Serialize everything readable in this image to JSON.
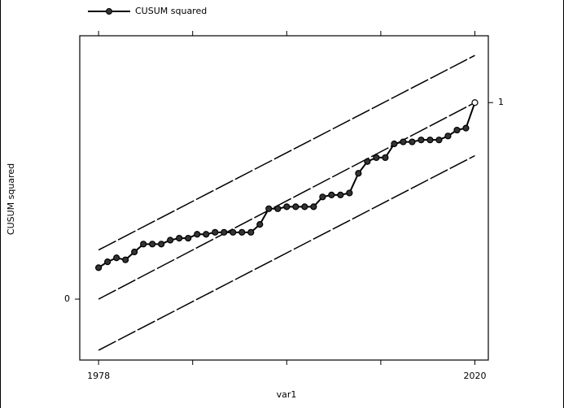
{
  "chart_data": {
    "type": "line",
    "x_label": "var1",
    "y_label": "CUSUM squared",
    "x": [
      1978,
      1979,
      1980,
      1981,
      1982,
      1983,
      1984,
      1985,
      1986,
      1987,
      1988,
      1989,
      1990,
      1991,
      1992,
      1993,
      1994,
      1995,
      1996,
      1997,
      1998,
      1999,
      2000,
      2001,
      2002,
      2003,
      2004,
      2005,
      2006,
      2007,
      2008,
      2009,
      2010,
      2011,
      2012,
      2013,
      2014,
      2015,
      2016,
      2017,
      2018,
      2019,
      2020
    ],
    "series": [
      {
        "name": "CUSUM squared",
        "color": "#000000",
        "values": [
          0.16,
          0.19,
          0.21,
          0.2,
          0.24,
          0.28,
          0.28,
          0.28,
          0.3,
          0.31,
          0.31,
          0.33,
          0.33,
          0.34,
          0.34,
          0.34,
          0.34,
          0.34,
          0.38,
          0.46,
          0.46,
          0.47,
          0.47,
          0.47,
          0.47,
          0.52,
          0.53,
          0.53,
          0.54,
          0.64,
          0.7,
          0.72,
          0.72,
          0.79,
          0.8,
          0.8,
          0.81,
          0.81,
          0.81,
          0.83,
          0.86,
          0.87,
          1.0
        ]
      }
    ],
    "bands": [
      {
        "x": [
          1978,
          2020
        ],
        "values": [
          0.25,
          1.24
        ]
      },
      {
        "x": [
          1978,
          2020
        ],
        "values": [
          0,
          1
        ]
      },
      {
        "x": [
          1978,
          2020
        ],
        "values": [
          -0.26,
          0.73
        ]
      }
    ],
    "xlim": [
      1975.9,
      2021.5
    ],
    "ylim": [
      -0.31,
      1.34
    ],
    "y2lim": [
      -0.31,
      1.34
    ],
    "xticks": [
      1978,
      {
        "value": 1988.5,
        "label": null
      },
      {
        "value": 1999,
        "label": null
      },
      {
        "value": 2009.5,
        "label": null
      },
      2020
    ],
    "yticks": [
      0
    ],
    "y2ticks": [
      1
    ],
    "legend": "top"
  }
}
